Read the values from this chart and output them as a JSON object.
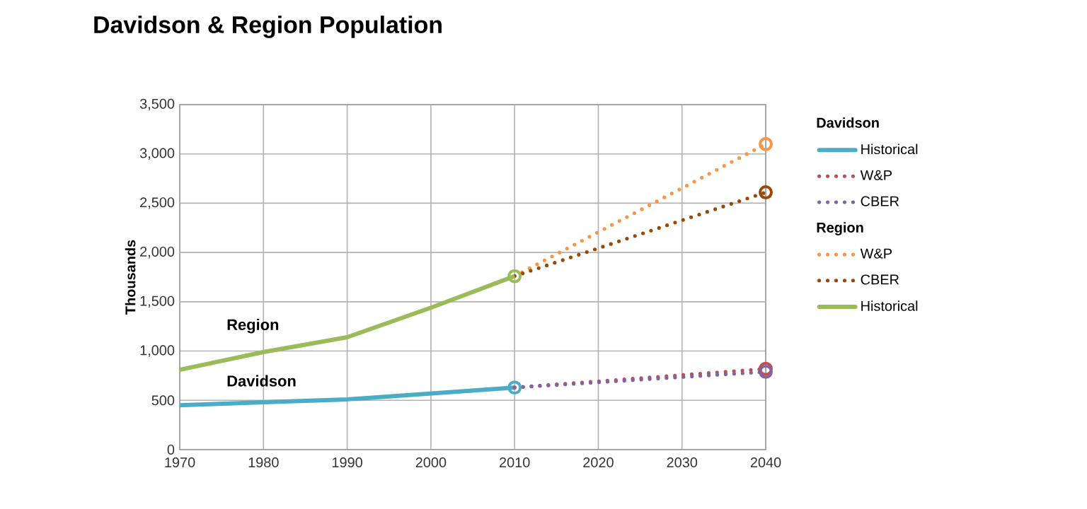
{
  "chart_data": {
    "type": "line",
    "title": "Davidson & Region Population",
    "ylabel": "Thousands",
    "xlim": [
      1970,
      2040
    ],
    "xticks": [
      1970,
      1980,
      1990,
      2000,
      2010,
      2020,
      2030,
      2040
    ],
    "ylim": [
      0,
      3500
    ],
    "yticks": [
      0,
      500,
      {
        "value": 1000,
        "label": "1,000"
      },
      {
        "value": 1500,
        "label": "1,500"
      },
      {
        "value": 2000,
        "label": "2,000"
      },
      {
        "value": 2500,
        "label": "2,500"
      },
      {
        "value": 3000,
        "label": "3,000"
      },
      {
        "value": 3500,
        "label": "3,500"
      }
    ],
    "grid": true,
    "legend": "right",
    "annotations": [
      "Region",
      "Davidson",
      "Davidson",
      "Region"
    ],
    "series": [
      {
        "name": "Historical",
        "color": "#4bacc6",
        "line_style": "solid",
        "x": [
          1970,
          1980,
          1990,
          2000,
          2010
        ],
        "values": [
          450,
          480,
          510,
          570,
          630
        ]
      },
      {
        "name": "W&P",
        "color": "#c0504d",
        "line_style": "dotted",
        "x": [
          2010,
          2040
        ],
        "values": [
          630,
          820
        ]
      },
      {
        "name": "CBER",
        "color": "#8064a2",
        "line_style": "dotted",
        "x": [
          2010,
          2040
        ],
        "values": [
          630,
          790
        ]
      },
      {
        "name": "W&P",
        "color": "#f79646",
        "line_style": "dotted",
        "x": [
          2010,
          2040
        ],
        "values": [
          1760,
          3100
        ]
      },
      {
        "name": "CBER",
        "color": "#984807",
        "line_style": "dotted",
        "x": [
          2010,
          2040
        ],
        "values": [
          1760,
          2610
        ]
      },
      {
        "name": "Historical",
        "color": "#9bbb59",
        "line_style": "solid",
        "x": [
          1970,
          1980,
          1990,
          2000,
          2010
        ],
        "values": [
          810,
          990,
          1140,
          1440,
          1760
        ]
      },
      {
        "type": "scatter",
        "marker": "circle",
        "x": [
          2010,
          2010,
          2040,
          2040,
          2040,
          2040
        ],
        "values": [
          630,
          1760,
          3100,
          2610,
          820,
          790
        ],
        "colors": [
          "#4bacc6",
          "#9bbb59",
          "#f79646",
          "#984807",
          "#c0504d",
          "#8064a2"
        ]
      }
    ]
  }
}
